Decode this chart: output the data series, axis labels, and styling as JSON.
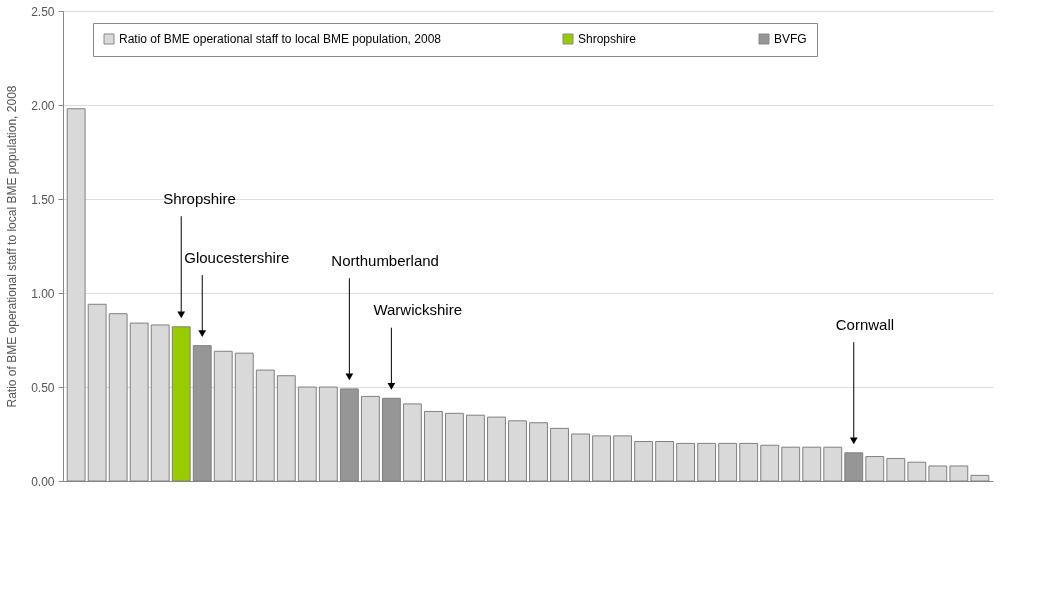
{
  "chart_data": {
    "type": "bar",
    "ylabel": "Ratio of BME operational staff to local BME population, 2008",
    "categories": [
      null,
      null,
      null,
      null,
      null,
      null,
      null,
      null,
      null,
      null,
      null,
      null,
      null,
      null,
      null,
      null,
      null,
      null,
      null,
      null,
      null,
      null,
      null,
      null,
      null,
      null,
      null,
      null,
      null,
      null,
      null,
      null,
      null,
      null,
      null,
      null,
      null,
      null,
      null,
      null,
      null,
      null,
      null,
      null
    ],
    "series": [
      {
        "name": "Ratio of BME operational staff to local BME population, 2008",
        "color": "#d9d9d9",
        "values": [
          1.98,
          0.94,
          0.89,
          0.84,
          0.83,
          null,
          null,
          0.69,
          0.68,
          0.59,
          0.56,
          0.5,
          0.5,
          null,
          0.45,
          null,
          0.41,
          0.37,
          0.36,
          0.35,
          0.34,
          0.32,
          0.31,
          0.28,
          0.25,
          0.24,
          0.24,
          0.21,
          0.21,
          0.2,
          0.2,
          0.2,
          0.2,
          0.19,
          0.18,
          0.18,
          0.18,
          null,
          0.13,
          0.12,
          0.1,
          0.08,
          0.08,
          0.03
        ]
      },
      {
        "name": "Shropshire",
        "color": "#99cc00",
        "values": [
          null,
          null,
          null,
          null,
          null,
          0.82,
          null,
          null,
          null,
          null,
          null,
          null,
          null,
          null,
          null,
          null,
          null,
          null,
          null,
          null,
          null,
          null,
          null,
          null,
          null,
          null,
          null,
          null,
          null,
          null,
          null,
          null,
          null,
          null,
          null,
          null,
          null,
          null,
          null,
          null,
          null,
          null,
          null,
          null
        ]
      },
      {
        "name": "BVFG",
        "color": "#969696",
        "values": [
          null,
          null,
          null,
          null,
          null,
          null,
          0.72,
          null,
          null,
          null,
          null,
          null,
          null,
          0.49,
          null,
          0.44,
          null,
          null,
          null,
          null,
          null,
          null,
          null,
          null,
          null,
          null,
          null,
          null,
          null,
          null,
          null,
          null,
          null,
          null,
          null,
          null,
          null,
          0.15,
          null,
          null,
          null,
          null,
          null,
          null
        ]
      }
    ],
    "annotations": [
      "Shropshire",
      "Gloucestershire",
      "Northumberland",
      "Warwickshire",
      "Cornwall"
    ],
    "ylim": [
      0,
      2.5
    ],
    "yticks": [
      {
        "value": 0,
        "label": "0.00"
      },
      {
        "value": 0.5,
        "label": "0.50"
      },
      {
        "value": 1,
        "label": "1.00"
      },
      {
        "value": 1.5,
        "label": "1.50"
      },
      {
        "value": 2,
        "label": "2.00"
      },
      {
        "value": 2.5,
        "label": "2.50"
      }
    ],
    "grid": "y",
    "legend": "top"
  }
}
